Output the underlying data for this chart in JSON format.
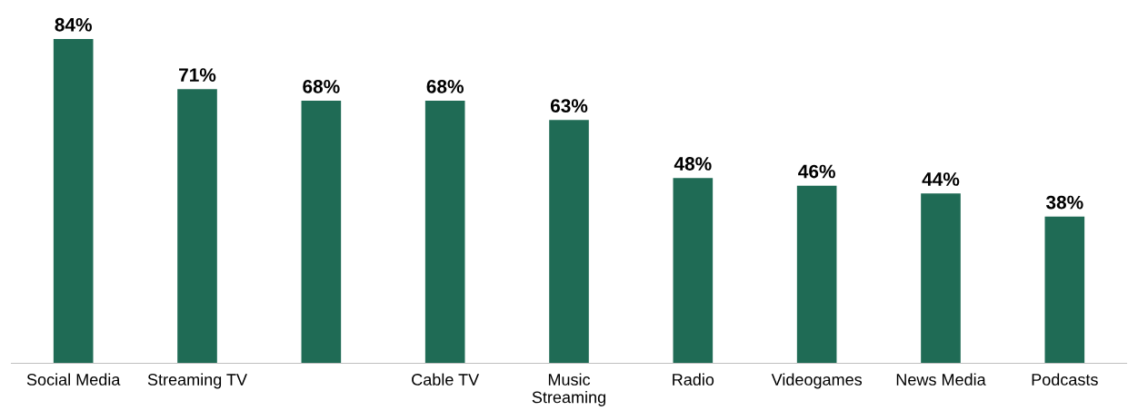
{
  "chart_data": {
    "type": "bar",
    "categories": [
      "Social Media",
      "Streaming TV",
      null,
      "Cable TV",
      "Music\nStreaming",
      "Radio",
      "Videogames",
      "News Media",
      "Podcasts"
    ],
    "values": [
      84,
      71,
      68,
      68,
      63,
      48,
      46,
      44,
      38
    ],
    "value_labels": [
      "84%",
      "71%",
      "68%",
      "68%",
      "63%",
      "48%",
      "46%",
      "44%",
      "38%"
    ],
    "color": "#1f6b55",
    "tick_labels": "x",
    "grid": false,
    "legend": false
  }
}
